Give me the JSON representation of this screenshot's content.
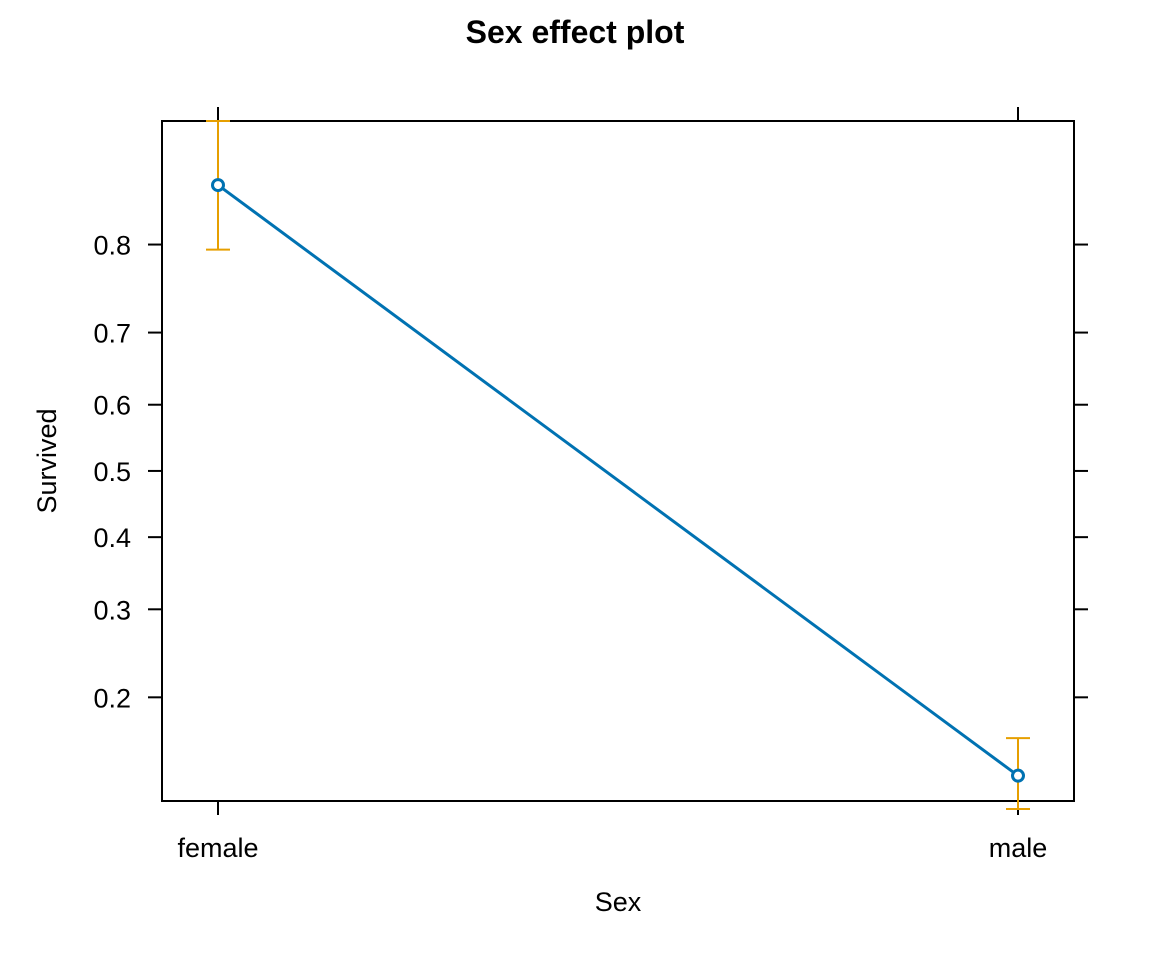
{
  "chart_data": {
    "type": "line",
    "title": "Sex effect plot",
    "xlabel": "Sex",
    "ylabel": "Survived",
    "scale": "logit",
    "categories": [
      "female",
      "male"
    ],
    "values": [
      0.852,
      0.134
    ],
    "lower": [
      0.795,
      0.112
    ],
    "upper": [
      0.895,
      0.163
    ],
    "yticks": [
      0.2,
      0.3,
      0.4,
      0.5,
      0.6,
      0.7,
      0.8
    ],
    "ytick_labels": [
      "0.2",
      "0.3",
      "0.4",
      "0.5",
      "0.6",
      "0.7",
      "0.8"
    ],
    "ylim": [
      0.117,
      0.895
    ],
    "legend": "none",
    "grid": false
  },
  "colors": {
    "line": "#0072B2",
    "ci": "#E69F00",
    "axis": "#000000"
  }
}
